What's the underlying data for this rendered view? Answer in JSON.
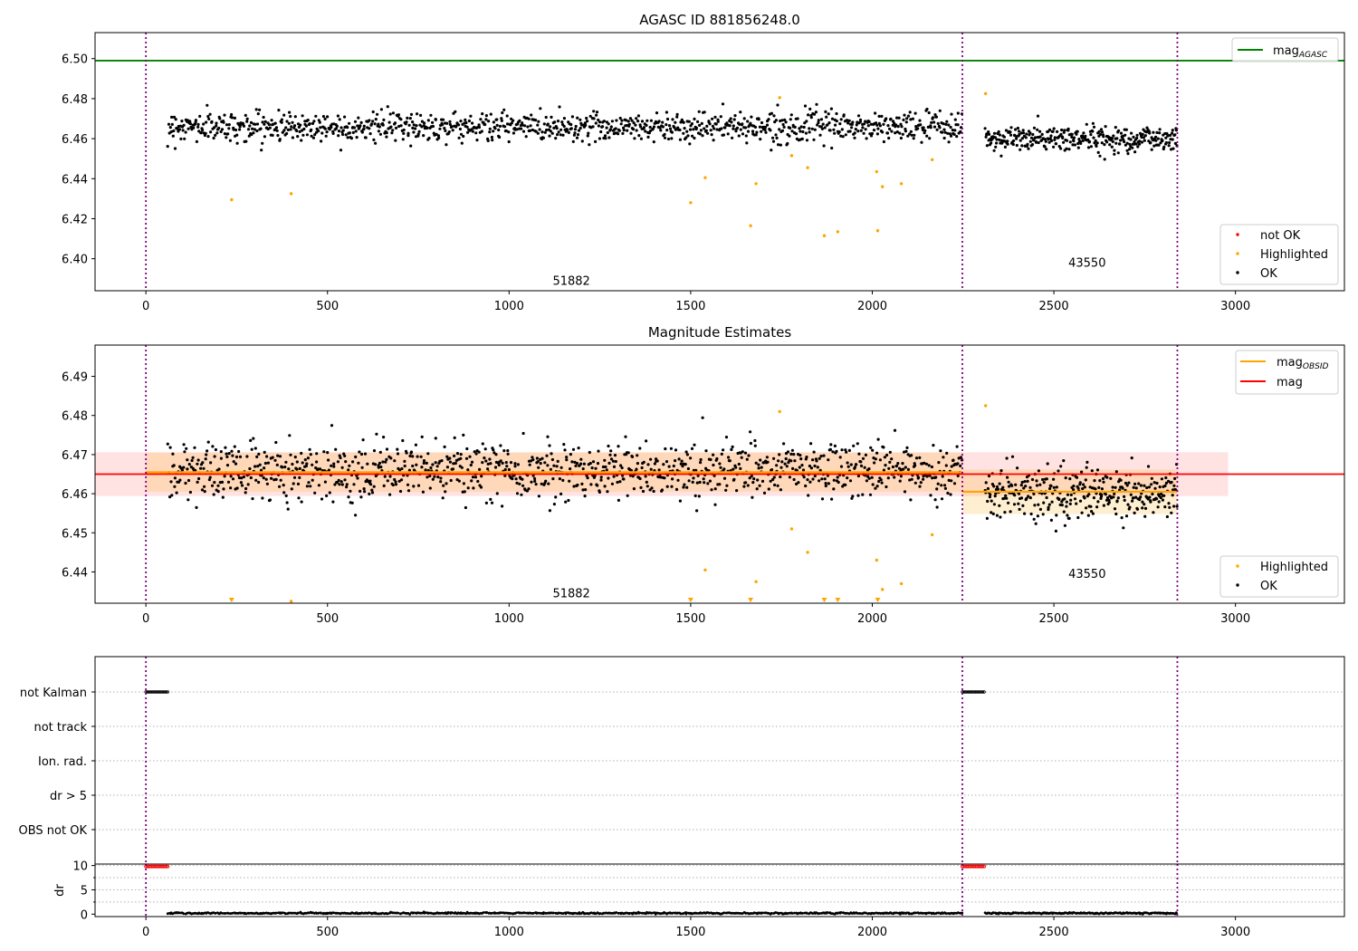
{
  "figure": {
    "title": "AGASC ID 881856248.0"
  },
  "colors": {
    "ok": "#000000",
    "highlighted": "#ffa500",
    "not_ok": "#ff0000",
    "mag_agasc": "#008000",
    "mag_obsid": "#ffa500",
    "mag": "#ff0000",
    "obs_boundary": "#800080",
    "grid": "#b0b0b0"
  },
  "chart_data": [
    {
      "type": "scatter",
      "title": "AGASC ID 881856248.0",
      "xlim": [
        -140,
        3300
      ],
      "ylim": [
        6.384,
        6.513
      ],
      "xticks": [
        0,
        500,
        1000,
        1500,
        2000,
        2500,
        3000
      ],
      "yticks": [
        6.4,
        6.42,
        6.44,
        6.46,
        6.48,
        6.5
      ],
      "ytick_labels": [
        "6.40",
        "6.42",
        "6.44",
        "6.46",
        "6.48",
        "6.50"
      ],
      "obs_boundaries": [
        0,
        2248,
        2840
      ],
      "obs_labels": [
        {
          "text": "51882",
          "x": 1120,
          "y": 6.387
        },
        {
          "text": "43550",
          "x": 2540,
          "y": 6.396
        }
      ],
      "mag_agasc": 6.499,
      "ok_segments": [
        {
          "x_start": 60,
          "x_end": 2248,
          "center": 6.466,
          "spread": 0.0065,
          "n": 1100
        },
        {
          "x_start": 2310,
          "x_end": 2840,
          "center": 6.46,
          "spread": 0.006,
          "n": 330
        }
      ],
      "highlighted_points": [
        [
          236,
          6.4295
        ],
        [
          400,
          6.4325
        ],
        [
          1500,
          6.428
        ],
        [
          1540,
          6.4405
        ],
        [
          1665,
          6.4165
        ],
        [
          1680,
          6.4375
        ],
        [
          1745,
          6.4805
        ],
        [
          1778,
          6.4515
        ],
        [
          1822,
          6.4455
        ],
        [
          1868,
          6.4115
        ],
        [
          1905,
          6.4135
        ],
        [
          2012,
          6.4435
        ],
        [
          2015,
          6.414
        ],
        [
          2028,
          6.436
        ],
        [
          2080,
          6.4375
        ],
        [
          2165,
          6.4495
        ],
        [
          2312,
          6.4825
        ]
      ],
      "legend": {
        "placement": "top-right (line) / bottom-right (points)",
        "line_entries": [
          {
            "key": "mag_agasc",
            "base": "mag",
            "sub": "AGASC"
          }
        ],
        "point_entries": [
          {
            "key": "not_ok",
            "label": "not OK"
          },
          {
            "key": "highlighted",
            "label": "Highlighted"
          },
          {
            "key": "ok",
            "label": "OK"
          }
        ]
      }
    },
    {
      "type": "scatter",
      "title": "Magnitude Estimates",
      "xlim": [
        -140,
        3300
      ],
      "ylim": [
        6.432,
        6.498
      ],
      "xticks": [
        0,
        500,
        1000,
        1500,
        2000,
        2500,
        3000
      ],
      "yticks": [
        6.44,
        6.45,
        6.46,
        6.47,
        6.48,
        6.49
      ],
      "ytick_labels": [
        "6.44",
        "6.45",
        "6.46",
        "6.47",
        "6.48",
        "6.49"
      ],
      "obs_boundaries": [
        0,
        2248,
        2840
      ],
      "obs_labels": [
        {
          "text": "51882",
          "x": 1120,
          "y": 6.4335
        },
        {
          "text": "43550",
          "x": 2540,
          "y": 6.4385
        }
      ],
      "mag": {
        "value": 6.465,
        "band": [
          6.4594,
          6.4706
        ],
        "x_range": [
          -140,
          2980
        ]
      },
      "mag_obsid": [
        {
          "x_range": [
            0,
            2248
          ],
          "value": 6.4655,
          "band": [
            6.4605,
            6.4705
          ]
        },
        {
          "x_range": [
            2248,
            2840
          ],
          "value": 6.4605,
          "band": [
            6.4548,
            6.4662
          ]
        }
      ],
      "ok_segments": [
        {
          "x_start": 60,
          "x_end": 2248,
          "center": 6.466,
          "spread": 0.0065,
          "n": 1100
        },
        {
          "x_start": 2310,
          "x_end": 2840,
          "center": 6.46,
          "spread": 0.006,
          "n": 330
        }
      ],
      "highlighted_points": [
        [
          400,
          6.4325
        ],
        [
          1540,
          6.4405
        ],
        [
          1680,
          6.4375
        ],
        [
          1745,
          6.481
        ],
        [
          1778,
          6.451
        ],
        [
          1822,
          6.445
        ],
        [
          2012,
          6.443
        ],
        [
          2028,
          6.4355
        ],
        [
          2080,
          6.437
        ],
        [
          2165,
          6.4495
        ],
        [
          2312,
          6.4825
        ]
      ],
      "clipped_highlighted_x": [
        236,
        1500,
        1665,
        1868,
        1905,
        2015
      ],
      "legend": {
        "placement": "top-right (lines) / bottom-right (points)",
        "line_entries": [
          {
            "key": "mag_obsid",
            "base": "mag",
            "sub": "OBSID"
          },
          {
            "key": "mag",
            "base": "mag",
            "sub": ""
          }
        ],
        "point_entries": [
          {
            "key": "highlighted",
            "label": "Highlighted"
          },
          {
            "key": "ok",
            "label": "OK"
          }
        ]
      }
    },
    {
      "type": "scatter",
      "title": "",
      "xlim": [
        -140,
        3300
      ],
      "flag_rows": [
        "not Kalman",
        "not track",
        "Ion. rad.",
        "dr > 5",
        "OBS not OK"
      ],
      "flag_marks": [
        {
          "row": "not Kalman",
          "x_ranges": [
            [
              0,
              62
            ],
            [
              2248,
              2310
            ]
          ]
        }
      ],
      "obs_boundaries": [
        0,
        2248,
        2840
      ]
    },
    {
      "type": "scatter",
      "title": "",
      "xlim": [
        -140,
        3300
      ],
      "ylim": [
        -0.5,
        10.3
      ],
      "ylabel": "dr",
      "xticks": [
        0,
        500,
        1000,
        1500,
        2000,
        2500,
        3000
      ],
      "yticks": [
        0,
        5,
        10
      ],
      "ytick_labels": [
        "0",
        "5",
        "10"
      ],
      "obs_boundaries": [
        0,
        2248,
        2840
      ],
      "clipped_dr_ranges": [
        [
          0,
          62
        ],
        [
          2248,
          2310
        ]
      ],
      "clipped_value": 9.8,
      "dr_segments": [
        {
          "x_start": 60,
          "x_end": 2248,
          "center": 0.2,
          "spread": 0.12,
          "n": 700
        },
        {
          "x_start": 2310,
          "x_end": 2840,
          "center": 0.2,
          "spread": 0.12,
          "n": 200
        }
      ]
    }
  ]
}
